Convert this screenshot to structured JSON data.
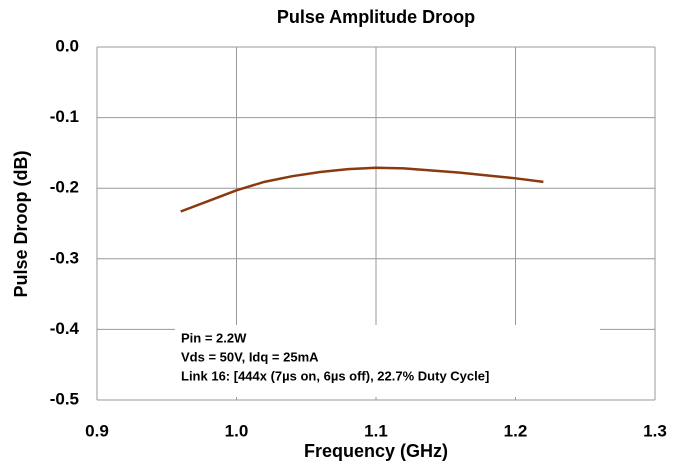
{
  "chart_data": {
    "type": "line",
    "title": "Pulse Amplitude Droop",
    "x_label": "Frequency (GHz)",
    "y_label": "Pulse Droop (dB)",
    "x": [
      0.96,
      0.98,
      1.0,
      1.02,
      1.04,
      1.06,
      1.08,
      1.1,
      1.12,
      1.14,
      1.16,
      1.18,
      1.2,
      1.22
    ],
    "series": [
      {
        "name": "Pulse Droop",
        "color": "#8b3a0f",
        "values": [
          -0.233,
          -0.218,
          -0.203,
          -0.191,
          -0.183,
          -0.177,
          -0.173,
          -0.171,
          -0.172,
          -0.175,
          -0.178,
          -0.182,
          -0.186,
          -0.191
        ]
      }
    ],
    "xlim": [
      0.9,
      1.3
    ],
    "xticks": [
      0.9,
      {
        "value": 1,
        "label": "1.0"
      },
      1.1,
      1.2,
      1.3
    ],
    "ylim": [
      -0.5,
      0
    ],
    "yticks": [
      {
        "value": 0,
        "label": "0.0"
      },
      -0.1,
      -0.2,
      -0.3,
      -0.4,
      -0.5
    ],
    "grid": true,
    "annotations": [
      "Pin = 2.2W",
      "Vds = 50V, Idq = 25mA",
      "Link 16: [444x (7µs on, 6µs off), 22.7% Duty Cycle]"
    ]
  }
}
